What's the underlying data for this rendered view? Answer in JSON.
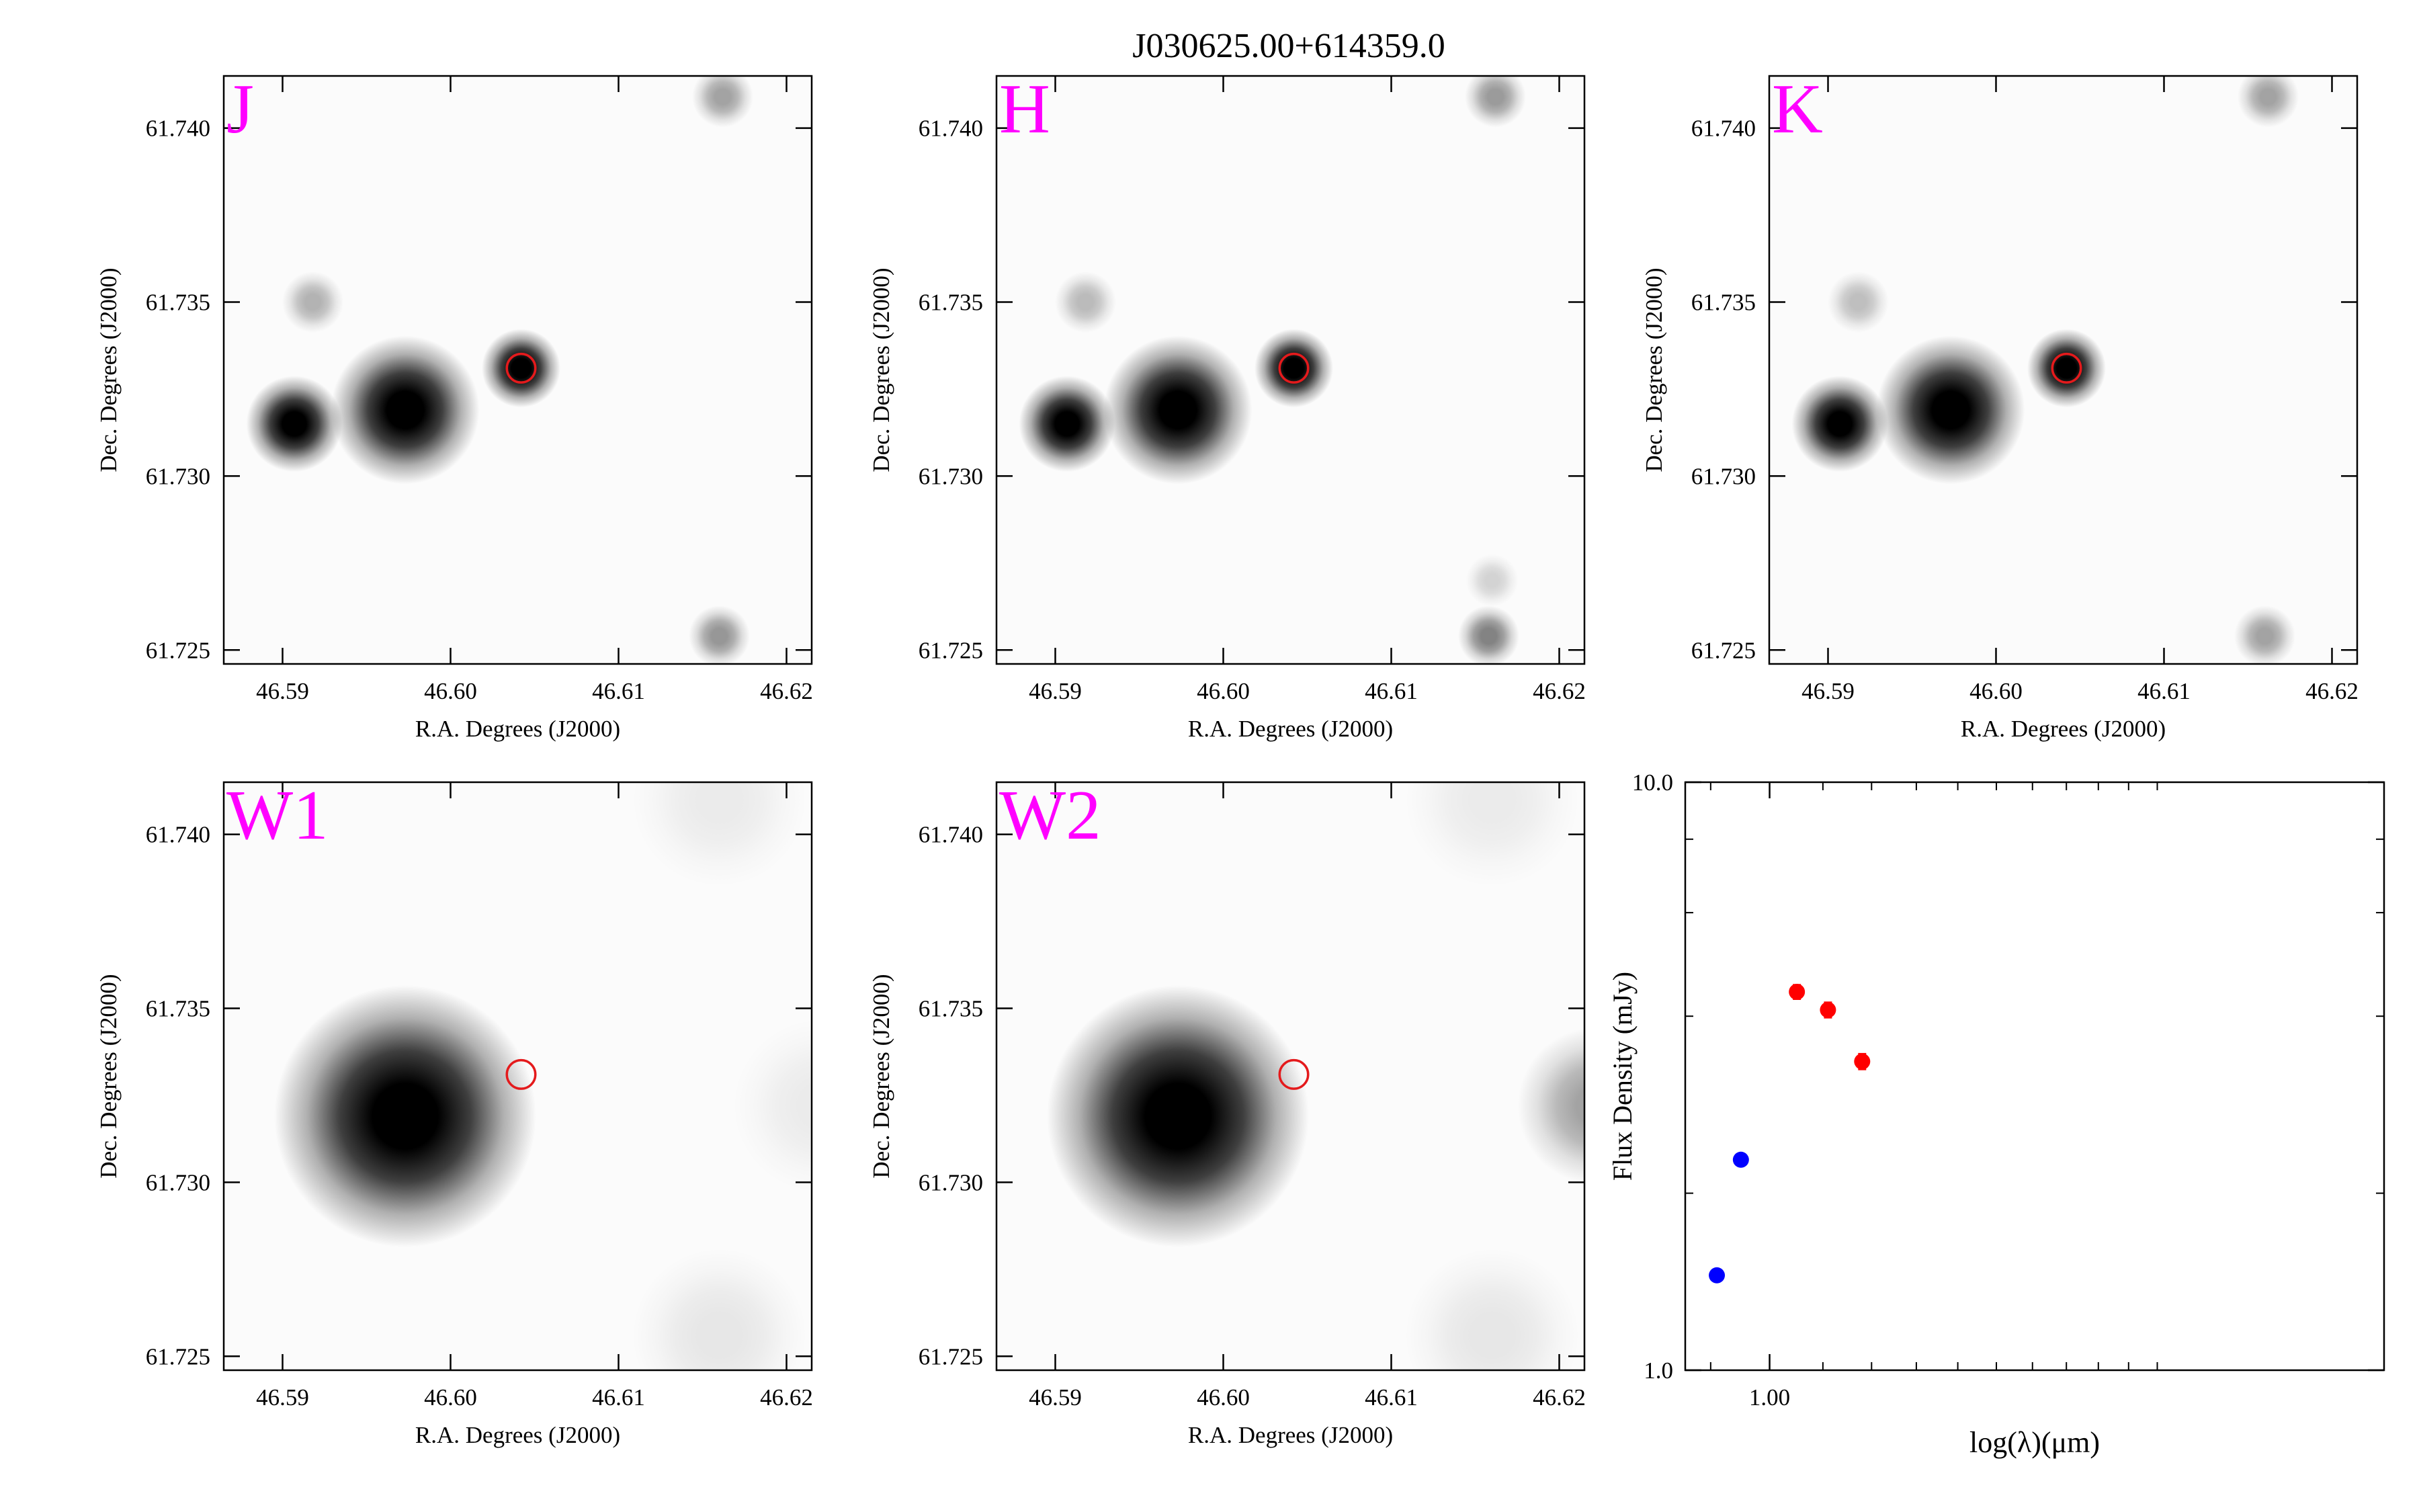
{
  "figure_title": "J030625.00+614359.0",
  "chart_data": [
    {
      "type": "heatmap",
      "band": "J",
      "xlabel": "R.A. Degrees (J2000)",
      "ylabel": "Dec. Degrees (J2000)",
      "xlim": [
        46.5865,
        46.6215
      ],
      "ylim": [
        61.7246,
        61.7415
      ],
      "xticks": [
        46.59,
        46.6,
        46.61,
        46.62
      ],
      "xtick_labels": [
        "46.59",
        "46.60",
        "46.61",
        "46.62"
      ],
      "yticks": [
        61.725,
        61.73,
        61.735,
        61.74
      ],
      "ytick_labels": [
        "61.725",
        "61.730",
        "61.735",
        "61.740"
      ],
      "sources": [
        {
          "ra": 46.5907,
          "dec": 61.7315,
          "strength": 0.95,
          "sigma": 0.0011
        },
        {
          "ra": 46.5973,
          "dec": 61.7319,
          "strength": 1.0,
          "sigma": 0.0017
        },
        {
          "ra": 46.6042,
          "dec": 61.7331,
          "strength": 0.85,
          "sigma": 0.0009
        },
        {
          "ra": 46.5918,
          "dec": 61.735,
          "strength": 0.18,
          "sigma": 0.0007
        },
        {
          "ra": 46.6162,
          "dec": 61.7409,
          "strength": 0.22,
          "sigma": 0.0007
        },
        {
          "ra": 46.616,
          "dec": 61.7254,
          "strength": 0.25,
          "sigma": 0.0007
        }
      ],
      "target": {
        "ra": 46.6042,
        "dec": 61.7331,
        "radius": 0.00085
      },
      "target_color": "#e41a1c"
    },
    {
      "type": "heatmap",
      "band": "H",
      "xlabel": "R.A. Degrees (J2000)",
      "ylabel": "Dec. Degrees (J2000)",
      "xlim": [
        46.5865,
        46.6215
      ],
      "ylim": [
        61.7246,
        61.7415
      ],
      "xticks": [
        46.59,
        46.6,
        46.61,
        46.62
      ],
      "xtick_labels": [
        "46.59",
        "46.60",
        "46.61",
        "46.62"
      ],
      "yticks": [
        61.725,
        61.73,
        61.735,
        61.74
      ],
      "ytick_labels": [
        "61.725",
        "61.730",
        "61.735",
        "61.740"
      ],
      "sources": [
        {
          "ra": 46.5907,
          "dec": 61.7315,
          "strength": 0.95,
          "sigma": 0.0011
        },
        {
          "ra": 46.5973,
          "dec": 61.7319,
          "strength": 1.0,
          "sigma": 0.0017
        },
        {
          "ra": 46.6042,
          "dec": 61.7331,
          "strength": 0.85,
          "sigma": 0.0009
        },
        {
          "ra": 46.5918,
          "dec": 61.735,
          "strength": 0.16,
          "sigma": 0.0007
        },
        {
          "ra": 46.6162,
          "dec": 61.7409,
          "strength": 0.24,
          "sigma": 0.0007
        },
        {
          "ra": 46.6158,
          "dec": 61.7254,
          "strength": 0.3,
          "sigma": 0.0007
        },
        {
          "ra": 46.616,
          "dec": 61.727,
          "strength": 0.1,
          "sigma": 0.0006
        }
      ],
      "target": {
        "ra": 46.6042,
        "dec": 61.7331,
        "radius": 0.00085
      },
      "target_color": "#e41a1c"
    },
    {
      "type": "heatmap",
      "band": "K",
      "xlabel": "R.A. Degrees (J2000)",
      "ylabel": "Dec. Degrees (J2000)",
      "xlim": [
        46.5865,
        46.6215
      ],
      "ylim": [
        61.7246,
        61.7415
      ],
      "xticks": [
        46.59,
        46.6,
        46.61,
        46.62
      ],
      "xtick_labels": [
        "46.59",
        "46.60",
        "46.61",
        "46.62"
      ],
      "yticks": [
        61.725,
        61.73,
        61.735,
        61.74
      ],
      "ytick_labels": [
        "61.725",
        "61.730",
        "61.735",
        "61.740"
      ],
      "sources": [
        {
          "ra": 46.5907,
          "dec": 61.7315,
          "strength": 0.95,
          "sigma": 0.0011
        },
        {
          "ra": 46.5973,
          "dec": 61.7319,
          "strength": 1.0,
          "sigma": 0.0017
        },
        {
          "ra": 46.6042,
          "dec": 61.7331,
          "strength": 0.85,
          "sigma": 0.0009
        },
        {
          "ra": 46.5918,
          "dec": 61.735,
          "strength": 0.15,
          "sigma": 0.0007
        },
        {
          "ra": 46.6162,
          "dec": 61.7409,
          "strength": 0.22,
          "sigma": 0.0007
        },
        {
          "ra": 46.616,
          "dec": 61.7254,
          "strength": 0.22,
          "sigma": 0.0007
        }
      ],
      "target": {
        "ra": 46.6042,
        "dec": 61.7331,
        "radius": 0.00085
      },
      "target_color": "#e41a1c"
    },
    {
      "type": "heatmap",
      "band": "W1",
      "xlabel": "R.A. Degrees (J2000)",
      "ylabel": "Dec. Degrees (J2000)",
      "xlim": [
        46.5865,
        46.6215
      ],
      "ylim": [
        61.7246,
        61.7415
      ],
      "xticks": [
        46.59,
        46.6,
        46.61,
        46.62
      ],
      "xtick_labels": [
        "46.59",
        "46.60",
        "46.61",
        "46.62"
      ],
      "yticks": [
        61.725,
        61.73,
        61.735,
        61.74
      ],
      "ytick_labels": [
        "61.725",
        "61.730",
        "61.735",
        "61.740"
      ],
      "sources": [
        {
          "ra": 46.5973,
          "dec": 61.7319,
          "strength": 1.0,
          "sigma": 0.003
        },
        {
          "ra": 46.616,
          "dec": 61.741,
          "strength": 0.04,
          "sigma": 0.002
        },
        {
          "ra": 46.616,
          "dec": 61.7256,
          "strength": 0.05,
          "sigma": 0.002
        },
        {
          "ra": 46.622,
          "dec": 61.7322,
          "strength": 0.04,
          "sigma": 0.002
        }
      ],
      "target": {
        "ra": 46.6042,
        "dec": 61.7331,
        "radius": 0.00085
      },
      "target_color": "#e41a1c"
    },
    {
      "type": "heatmap",
      "band": "W2",
      "xlabel": "R.A. Degrees (J2000)",
      "ylabel": "Dec. Degrees (J2000)",
      "xlim": [
        46.5865,
        46.6215
      ],
      "ylim": [
        61.7246,
        61.7415
      ],
      "xticks": [
        46.59,
        46.6,
        46.61,
        46.62
      ],
      "xtick_labels": [
        "46.59",
        "46.60",
        "46.61",
        "46.62"
      ],
      "yticks": [
        61.725,
        61.73,
        61.735,
        61.74
      ],
      "ytick_labels": [
        "61.725",
        "61.730",
        "61.735",
        "61.740"
      ],
      "sources": [
        {
          "ra": 46.5973,
          "dec": 61.7319,
          "strength": 1.0,
          "sigma": 0.003
        },
        {
          "ra": 46.616,
          "dec": 61.741,
          "strength": 0.04,
          "sigma": 0.002
        },
        {
          "ra": 46.616,
          "dec": 61.7256,
          "strength": 0.05,
          "sigma": 0.002
        },
        {
          "ra": 46.6222,
          "dec": 61.7322,
          "strength": 0.22,
          "sigma": 0.0018
        }
      ],
      "target": {
        "ra": 46.6042,
        "dec": 61.7331,
        "radius": 0.00085
      },
      "target_color": "#e41a1c"
    },
    {
      "type": "scatter",
      "xlabel": "log(λ)(μm)",
      "ylabel": "Flux Density (mJy)",
      "xscale": "log",
      "yscale": "log",
      "xlim": [
        0.86,
        3.0
      ],
      "ylim": [
        1.0,
        10.0
      ],
      "xticks": [
        1.0
      ],
      "xtick_labels": [
        "1.00"
      ],
      "yticks": [
        1.0,
        10.0
      ],
      "ytick_labels": [
        "1.0",
        "10.0"
      ],
      "series": [
        {
          "color": "#0000ff",
          "x": [
            0.91,
            0.95
          ],
          "y": [
            1.45,
            2.28
          ],
          "yerr": [
            0.0,
            0.0
          ]
        },
        {
          "color": "#ff0000",
          "x": [
            1.05,
            1.11,
            1.18
          ],
          "y": [
            4.4,
            4.1,
            3.35
          ],
          "yerr": [
            0.12,
            0.12,
            0.1
          ]
        }
      ]
    }
  ]
}
